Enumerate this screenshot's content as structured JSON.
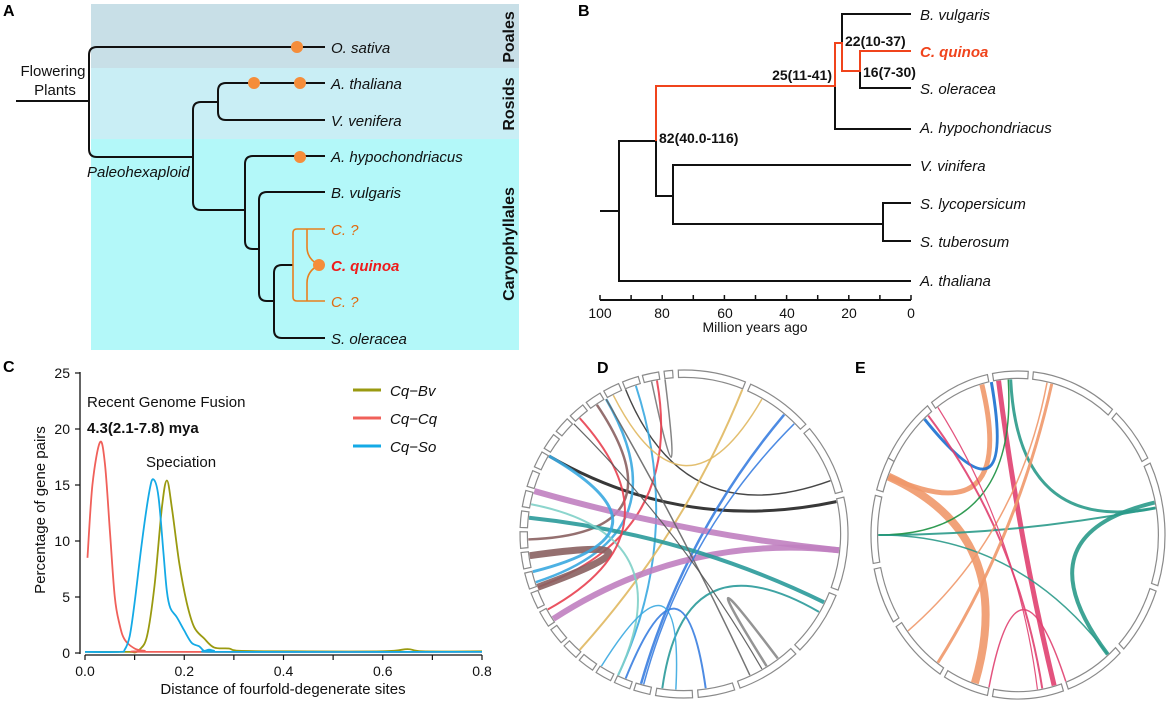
{
  "panels": {
    "a": "A",
    "b": "B",
    "c": "C",
    "d": "D",
    "e": "E"
  },
  "panel_a": {
    "root_label_line1": "Flowering",
    "root_label_line2": "Plants",
    "node_label": "Paleohexaploid",
    "clades": [
      "Poales",
      "Rosids",
      "Caryophyllales"
    ],
    "leaves": [
      "O. sativa",
      "A. thaliana",
      "V. venifera",
      "A. hypochondriacus",
      "B. vulgaris",
      "C. ?",
      "C. quinoa",
      "C. ?",
      "S. oleracea"
    ],
    "colors": {
      "poales_band": "#c8dfe7",
      "rosids_band": "#c9eef5",
      "caryophyllales_band": "#b3f8f9",
      "wgd_dot": "#f58d3a",
      "highlight": "#ee1c1c",
      "subgenome": "#e06a10"
    }
  },
  "panel_b": {
    "leaves": [
      "B. vulgaris",
      "C. quinoa",
      "S. oleracea",
      "A. hypochondriacus",
      "V. vinifera",
      "S. lycopersicum",
      "S. tuberosum",
      "A. thaliana"
    ],
    "node_labels": [
      "22(10-37)",
      "25(11-41)",
      "16(7-30)",
      "82(40.0-116)"
    ],
    "axis_ticks": [
      "100",
      "80",
      "60",
      "40",
      "20",
      "0"
    ],
    "axis_label": "Million years ago",
    "highlight_color": "#f0441c"
  },
  "chart_data": {
    "type": "line",
    "xlabel": "Distance of fourfold-degenerate sites",
    "ylabel": "Percentage of gene pairs",
    "xlim": [
      0,
      0.8
    ],
    "ylim": [
      0,
      25
    ],
    "x_ticks": [
      "0.0",
      "0.2",
      "0.4",
      "0.6",
      "0.8"
    ],
    "y_ticks": [
      "0",
      "5",
      "10",
      "15",
      "20",
      "25"
    ],
    "grid": false,
    "legend": "top-right",
    "annotations": {
      "fusion": "Recent Genome Fusion",
      "fusion_date": "4.3(2.1-7.8) mya",
      "speciation": "Speciation"
    },
    "series": [
      {
        "name": "Cq−Bv",
        "color": "#9a9a10",
        "points": [
          [
            0,
            0.1
          ],
          [
            0.09,
            0.1
          ],
          [
            0.1,
            0.05
          ],
          [
            0.11,
            0.3
          ],
          [
            0.125,
            1.5
          ],
          [
            0.14,
            6
          ],
          [
            0.155,
            13
          ],
          [
            0.165,
            15.4
          ],
          [
            0.175,
            13
          ],
          [
            0.19,
            8
          ],
          [
            0.205,
            4.5
          ],
          [
            0.22,
            2.3
          ],
          [
            0.24,
            1.3
          ],
          [
            0.26,
            0.5
          ],
          [
            0.29,
            0.4
          ],
          [
            0.31,
            0.2
          ],
          [
            0.4,
            0.15
          ],
          [
            0.6,
            0.15
          ],
          [
            0.65,
            0.35
          ],
          [
            0.68,
            0.15
          ],
          [
            0.8,
            0.15
          ]
        ]
      },
      {
        "name": "Cq−Cq",
        "color": "#f0605a",
        "points": [
          [
            0.005,
            8.5
          ],
          [
            0.015,
            15
          ],
          [
            0.03,
            18.8
          ],
          [
            0.04,
            17
          ],
          [
            0.05,
            11
          ],
          [
            0.06,
            5
          ],
          [
            0.07,
            2.5
          ],
          [
            0.08,
            1.2
          ],
          [
            0.1,
            0.4
          ],
          [
            0.12,
            0.2
          ],
          [
            0.15,
            0.1
          ],
          [
            0.8,
            0.1
          ]
        ]
      },
      {
        "name": "Cq−So",
        "color": "#14aae6",
        "points": [
          [
            0,
            0.1
          ],
          [
            0.07,
            0.1
          ],
          [
            0.08,
            0.3
          ],
          [
            0.09,
            1.5
          ],
          [
            0.1,
            4.5
          ],
          [
            0.115,
            10
          ],
          [
            0.13,
            14.5
          ],
          [
            0.138,
            15.5
          ],
          [
            0.148,
            14
          ],
          [
            0.158,
            9
          ],
          [
            0.165,
            5.5
          ],
          [
            0.172,
            4
          ],
          [
            0.185,
            3.2
          ],
          [
            0.2,
            2
          ],
          [
            0.215,
            0.9
          ],
          [
            0.23,
            0.6
          ],
          [
            0.24,
            0.2
          ],
          [
            0.25,
            0.3
          ],
          [
            0.26,
            0.2
          ],
          [
            0.28,
            0.1
          ],
          [
            0.8,
            0.1
          ]
        ]
      }
    ]
  }
}
